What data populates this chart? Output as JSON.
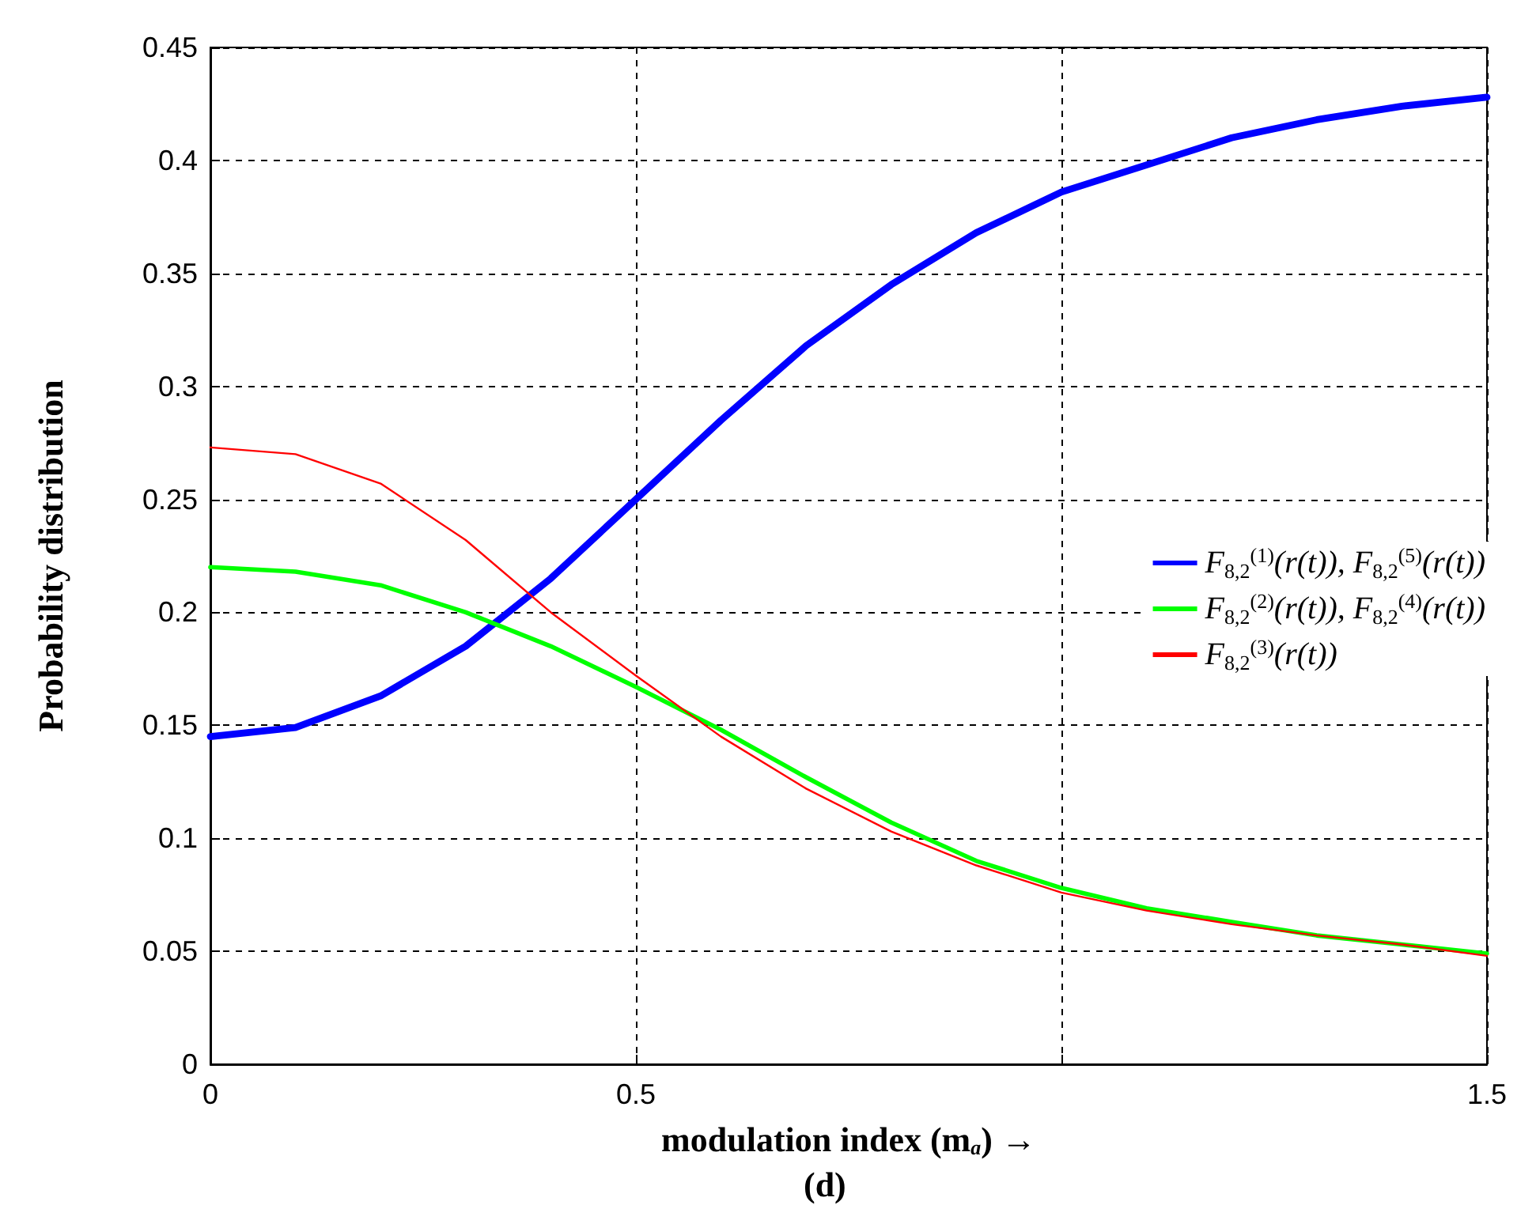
{
  "chart_data": {
    "type": "line",
    "xlabel": "modulation index (m$_{a}$) →",
    "ylabel": "Probability distribution",
    "annotations": [
      "(d)"
    ],
    "x": [
      0,
      0.1,
      0.2,
      0.3,
      0.4,
      0.5,
      0.6,
      0.7,
      0.8,
      0.9,
      1.0,
      1.1,
      1.2,
      1.3,
      1.4,
      1.5
    ],
    "series": [
      {
        "name": "F$_{8,2}$$^{(1)}$(r(t)), F$_{8,2}$$^{(5)}$(r(t))",
        "color": "#0000ff",
        "values": [
          0.145,
          0.149,
          0.163,
          0.185,
          0.215,
          0.25,
          0.285,
          0.318,
          0.345,
          0.368,
          0.386,
          0.398,
          0.41,
          0.418,
          0.424,
          0.428
        ]
      },
      {
        "name": "F$_{8,2}$$^{(2)}$(r(t)), F$_{8,2}$$^{(4)}$(r(t))",
        "color": "#00ff00",
        "values": [
          0.22,
          0.218,
          0.212,
          0.2,
          0.185,
          0.167,
          0.148,
          0.127,
          0.107,
          0.09,
          0.078,
          0.069,
          0.063,
          0.057,
          0.053,
          0.049
        ]
      },
      {
        "name": "F$_{8,2}$$^{(3)}$(r(t))",
        "color": "#ff0000",
        "values": [
          0.273,
          0.27,
          0.257,
          0.232,
          0.2,
          0.172,
          0.145,
          0.122,
          0.103,
          0.088,
          0.076,
          0.068,
          0.062,
          0.057,
          0.053,
          0.048
        ]
      }
    ],
    "xlim": [
      0,
      1.5
    ],
    "xticks": [
      0,
      0.5,
      {
        "value": 1,
        "label": null
      },
      1.5
    ],
    "ylim": [
      0,
      0.45
    ],
    "yticks": [
      0,
      0.05,
      0.1,
      0.15,
      0.2,
      0.25,
      0.3,
      0.35,
      0.4,
      0.45
    ],
    "grid": true,
    "legend": "right",
    "marker": "none",
    "line_style": "solid"
  }
}
